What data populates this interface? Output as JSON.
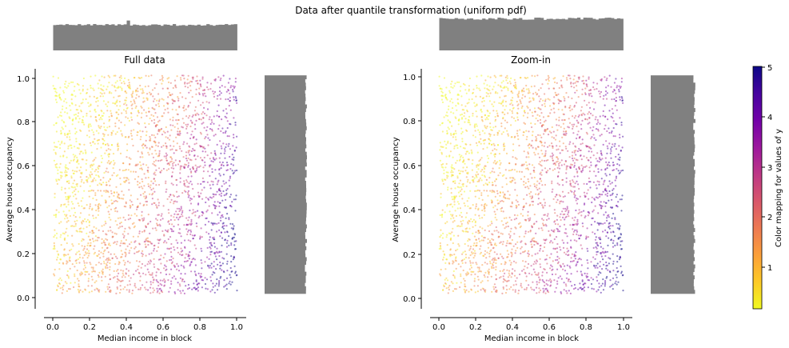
{
  "figure": {
    "suptitle": "Data after quantile transformation (uniform pdf)"
  },
  "colors": {
    "histogram": "#808080",
    "axis": "#000000",
    "colormap": [
      "#f0f921",
      "#fdca26",
      "#fb9f3a",
      "#ed7953",
      "#d8576b",
      "#bd3786",
      "#9c179e",
      "#7201a8",
      "#46039f",
      "#0d0887"
    ]
  },
  "chart_data": [
    {
      "type": "scatter",
      "title": "Full data",
      "xlabel": "Median income in block",
      "ylabel": "Average house occupancy",
      "x_ticks": [
        "0.0",
        "0.2",
        "0.4",
        "0.6",
        "0.8",
        "1.0"
      ],
      "y_ticks": [
        "0.0",
        "0.2",
        "0.4",
        "0.6",
        "0.8",
        "1.0"
      ],
      "xlim": [
        -0.05,
        1.05
      ],
      "ylim": [
        -0.07,
        1.03
      ],
      "point_alpha": 0.5,
      "grid": false,
      "marginal_histograms": {
        "top": "x distribution (uniform)",
        "right": "y distribution (uniform)"
      }
    },
    {
      "type": "scatter",
      "title": "Zoom-in",
      "xlabel": "Median income in block",
      "ylabel": "Average house occupancy",
      "x_ticks": [
        "0.0",
        "0.2",
        "0.4",
        "0.6",
        "0.8",
        "1.0"
      ],
      "y_ticks": [
        "0.0",
        "0.2",
        "0.4",
        "0.6",
        "0.8",
        "1.0"
      ],
      "xlim": [
        -0.05,
        1.05
      ],
      "ylim": [
        -0.07,
        1.03
      ],
      "point_alpha": 0.5,
      "grid": false,
      "marginal_histograms": {
        "top": "x distribution (uniform)",
        "right": "y distribution (uniform)"
      }
    }
  ],
  "colorbar": {
    "label": "Color mapping for values of y",
    "ticks": [
      "1",
      "2",
      "3",
      "4",
      "5"
    ],
    "range": [
      0.15,
      5.0
    ]
  }
}
